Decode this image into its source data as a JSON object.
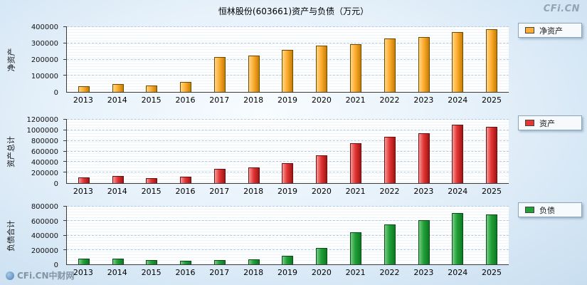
{
  "page": {
    "title": "恒林股份(603661)资产与负债（万元）",
    "watermark_top": "CFi.CN",
    "watermark_bottom": "CFi.CN中财网"
  },
  "chart_data": [
    {
      "type": "bar",
      "panel": "net-assets",
      "ylabel": "净资产",
      "legend": "净资产",
      "color": "#FFAE33",
      "color_light": "#FFD685",
      "color_dark": "#C67E00",
      "color_border": "#6E4A00",
      "categories": [
        "2013",
        "2014",
        "2015",
        "2016",
        "2017",
        "2018",
        "2019",
        "2020",
        "2021",
        "2022",
        "2023",
        "2024",
        "2025"
      ],
      "values": [
        35000,
        50000,
        40000,
        62000,
        215000,
        225000,
        260000,
        285000,
        295000,
        330000,
        340000,
        370000,
        385000
      ],
      "ylim": [
        0,
        400000
      ],
      "yticks": [
        0,
        100000,
        200000,
        300000,
        400000
      ],
      "xlabel": "",
      "grid": true,
      "legend_position": "right"
    },
    {
      "type": "bar",
      "panel": "total-assets",
      "ylabel": "资产总计",
      "legend": "资产",
      "color": "#E63535",
      "color_light": "#F49B9B",
      "color_dark": "#9E1515",
      "color_border": "#6E0F0F",
      "categories": [
        "2013",
        "2014",
        "2015",
        "2016",
        "2017",
        "2018",
        "2019",
        "2020",
        "2021",
        "2022",
        "2023",
        "2024",
        "2025"
      ],
      "values": [
        110000,
        130000,
        100000,
        115000,
        270000,
        300000,
        380000,
        520000,
        750000,
        880000,
        950000,
        1100000,
        1070000
      ],
      "ylim": [
        0,
        1200000
      ],
      "yticks": [
        0,
        200000,
        400000,
        600000,
        800000,
        1000000,
        1200000
      ],
      "xlabel": "",
      "grid": true,
      "legend_position": "right"
    },
    {
      "type": "bar",
      "panel": "total-liabilities",
      "ylabel": "负债合计",
      "legend": "负债",
      "color": "#21A038",
      "color_light": "#79CC85",
      "color_dark": "#0D7A22",
      "color_border": "#084D15",
      "categories": [
        "2013",
        "2014",
        "2015",
        "2016",
        "2017",
        "2018",
        "2019",
        "2020",
        "2021",
        "2022",
        "2023",
        "2024",
        "2025"
      ],
      "values": [
        75000,
        75000,
        60000,
        50000,
        55000,
        65000,
        120000,
        230000,
        440000,
        550000,
        610000,
        710000,
        690000
      ],
      "ylim": [
        0,
        800000
      ],
      "yticks": [
        0,
        200000,
        400000,
        600000,
        800000
      ],
      "xlabel": "",
      "grid": true,
      "legend_position": "right"
    }
  ]
}
